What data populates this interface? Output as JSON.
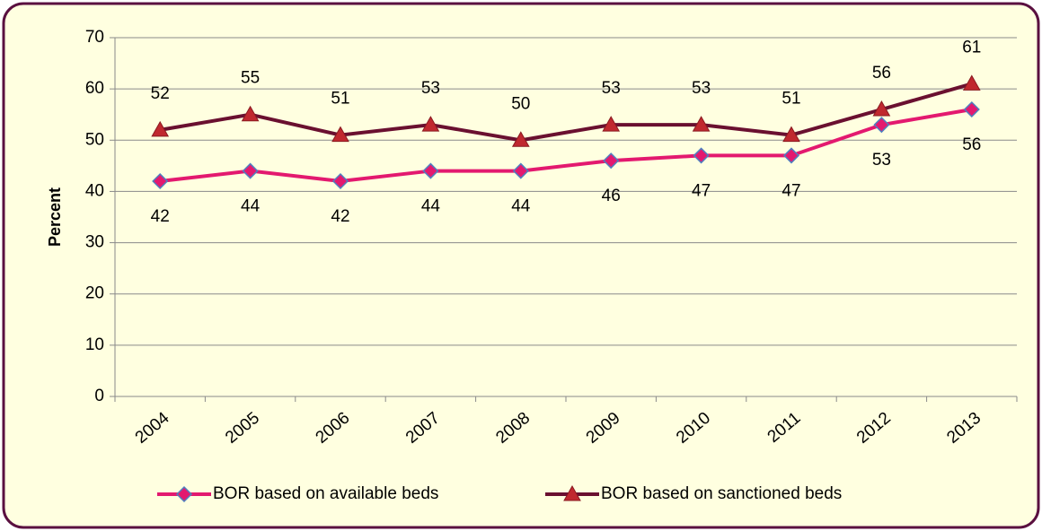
{
  "chart_data": {
    "type": "line",
    "y_label": "Percent",
    "categories": [
      "2004",
      "2005",
      "2006",
      "2007",
      "2008",
      "2009",
      "2010",
      "2011",
      "2012",
      "2013"
    ],
    "series": [
      {
        "name": "BOR based on available beds",
        "color": "#e3196f",
        "marker": "diamond",
        "values": [
          42,
          44,
          42,
          44,
          44,
          46,
          47,
          47,
          53,
          56
        ]
      },
      {
        "name": "BOR based on sanctioned beds",
        "color": "#6a1030",
        "marker": "triangle",
        "values": [
          52,
          55,
          51,
          53,
          50,
          53,
          53,
          51,
          56,
          61
        ]
      }
    ],
    "ylim": [
      0,
      70
    ],
    "yticks": [
      0,
      10,
      20,
      30,
      40,
      50,
      60,
      70
    ],
    "grid": true,
    "legend": "bottom"
  }
}
